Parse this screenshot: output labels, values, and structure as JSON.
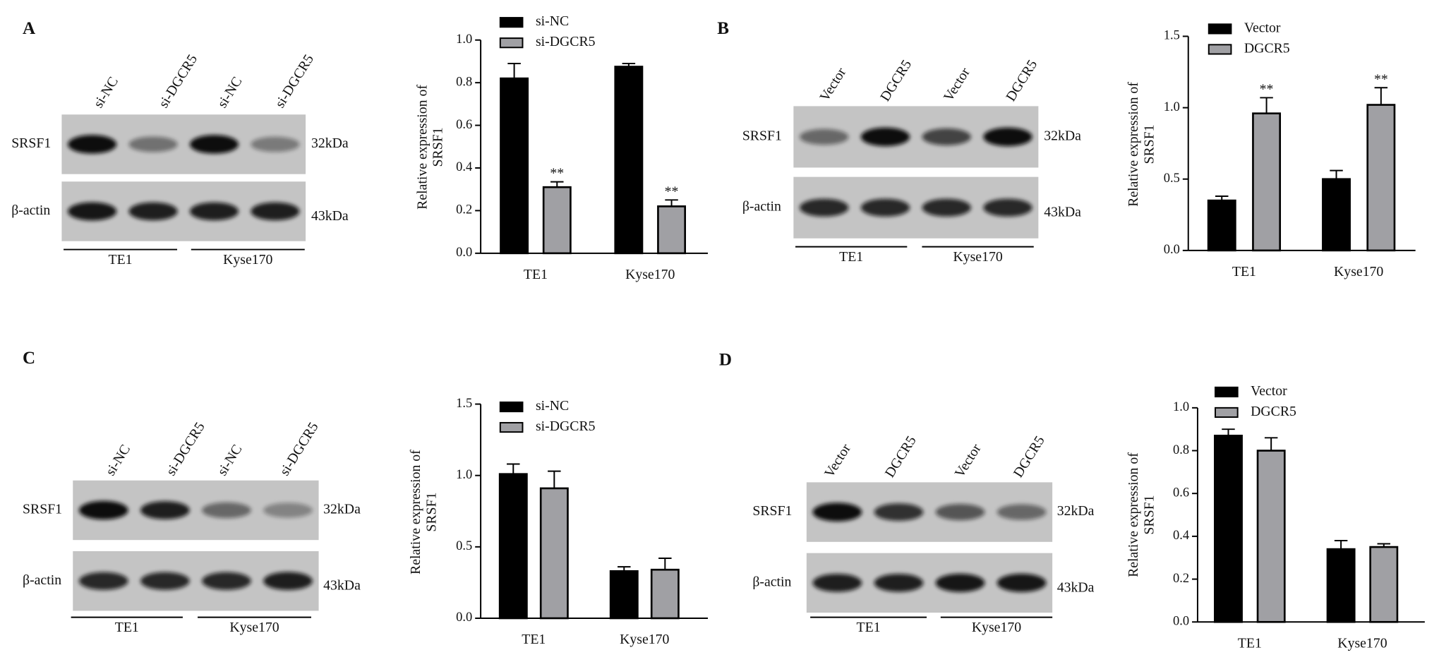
{
  "chart_data": [
    {
      "type": "bar",
      "ylabel": "Relative expression of SRSF1",
      "categories": [
        "TE1",
        "Kyse170"
      ],
      "series": [
        {
          "name": "si-NC",
          "color": "#000000",
          "values": [
            0.82,
            0.875
          ],
          "errors": [
            0.07,
            0.015
          ]
        },
        {
          "name": "si-DGCR5",
          "color": "#a0a0a4",
          "values": [
            0.31,
            0.22
          ],
          "errors": [
            0.025,
            0.03
          ],
          "significance": [
            "**",
            "**"
          ]
        }
      ],
      "ylim": [
        0,
        1
      ],
      "yticks": [
        {
          "value": 0,
          "label": "0.0"
        },
        0.2,
        0.4,
        0.6,
        0.8,
        {
          "value": 1,
          "label": "1.0"
        }
      ]
    },
    {
      "type": "bar",
      "ylabel": "Relative expression of SRSF1",
      "categories": [
        "TE1",
        "Kyse170"
      ],
      "series": [
        {
          "name": "Vector",
          "color": "#000000",
          "values": [
            0.35,
            0.5
          ],
          "errors": [
            0.03,
            0.06
          ]
        },
        {
          "name": "DGCR5",
          "color": "#a0a0a4",
          "values": [
            0.96,
            1.02
          ],
          "errors": [
            0.11,
            0.12
          ],
          "significance": [
            "**",
            "**"
          ]
        }
      ],
      "ylim": [
        0,
        1.5
      ],
      "yticks": [
        {
          "value": 0,
          "label": "0.0"
        },
        0.5,
        {
          "value": 1,
          "label": "1.0"
        },
        1.5
      ]
    },
    {
      "type": "bar",
      "ylabel": "Relative expression of SRSF1",
      "categories": [
        "TE1",
        "Kyse170"
      ],
      "series": [
        {
          "name": "si-NC",
          "color": "#000000",
          "values": [
            1.01,
            0.33
          ],
          "errors": [
            0.07,
            0.03
          ]
        },
        {
          "name": "si-DGCR5",
          "color": "#a0a0a4",
          "values": [
            0.91,
            0.34
          ],
          "errors": [
            0.12,
            0.08
          ]
        }
      ],
      "ylim": [
        0,
        1.5
      ],
      "yticks": [
        {
          "value": 0,
          "label": "0.0"
        },
        0.5,
        {
          "value": 1,
          "label": "1.0"
        },
        1.5
      ]
    },
    {
      "type": "bar",
      "ylabel": "Relative expression of SRSF1",
      "categories": [
        "TE1",
        "Kyse170"
      ],
      "series": [
        {
          "name": "Vector",
          "color": "#000000",
          "values": [
            0.87,
            0.34
          ],
          "errors": [
            0.03,
            0.04
          ]
        },
        {
          "name": "DGCR5",
          "color": "#a0a0a4",
          "values": [
            0.8,
            0.35
          ],
          "errors": [
            0.06,
            0.015
          ]
        }
      ],
      "ylim": [
        0,
        1
      ],
      "yticks": [
        {
          "value": 0,
          "label": "0.0"
        },
        0.2,
        0.4,
        0.6,
        0.8,
        {
          "value": 1,
          "label": "1.0"
        }
      ]
    }
  ],
  "blots": [
    {
      "letter": "A",
      "lanes": [
        "si-NC",
        "si-DGCR5",
        "si-NC",
        "si-DGCR5"
      ],
      "rows": [
        {
          "label": "SRSF1",
          "size": "32kDa"
        },
        {
          "label": "β-actin",
          "size": "43kDa"
        }
      ],
      "groups": [
        "TE1",
        "Kyse170"
      ]
    },
    {
      "letter": "B",
      "lanes": [
        "Vector",
        "DGCR5",
        "Vector",
        "DGCR5"
      ],
      "rows": [
        {
          "label": "SRSF1",
          "size": "32kDa"
        },
        {
          "label": "β-actin",
          "size": "43kDa"
        }
      ],
      "groups": [
        "TE1",
        "Kyse170"
      ]
    },
    {
      "letter": "C",
      "lanes": [
        "si-NC",
        "si-DGCR5",
        "si-NC",
        "si-DGCR5"
      ],
      "rows": [
        {
          "label": "SRSF1",
          "size": "32kDa"
        },
        {
          "label": "β-actin",
          "size": "43kDa"
        }
      ],
      "groups": [
        "TE1",
        "Kyse170"
      ]
    },
    {
      "letter": "D",
      "lanes": [
        "Vector",
        "DGCR5",
        "Vector",
        "DGCR5"
      ],
      "rows": [
        {
          "label": "SRSF1",
          "size": "32kDa"
        },
        {
          "label": "β-actin",
          "size": "43kDa"
        }
      ],
      "groups": [
        "TE1",
        "Kyse170"
      ]
    }
  ]
}
